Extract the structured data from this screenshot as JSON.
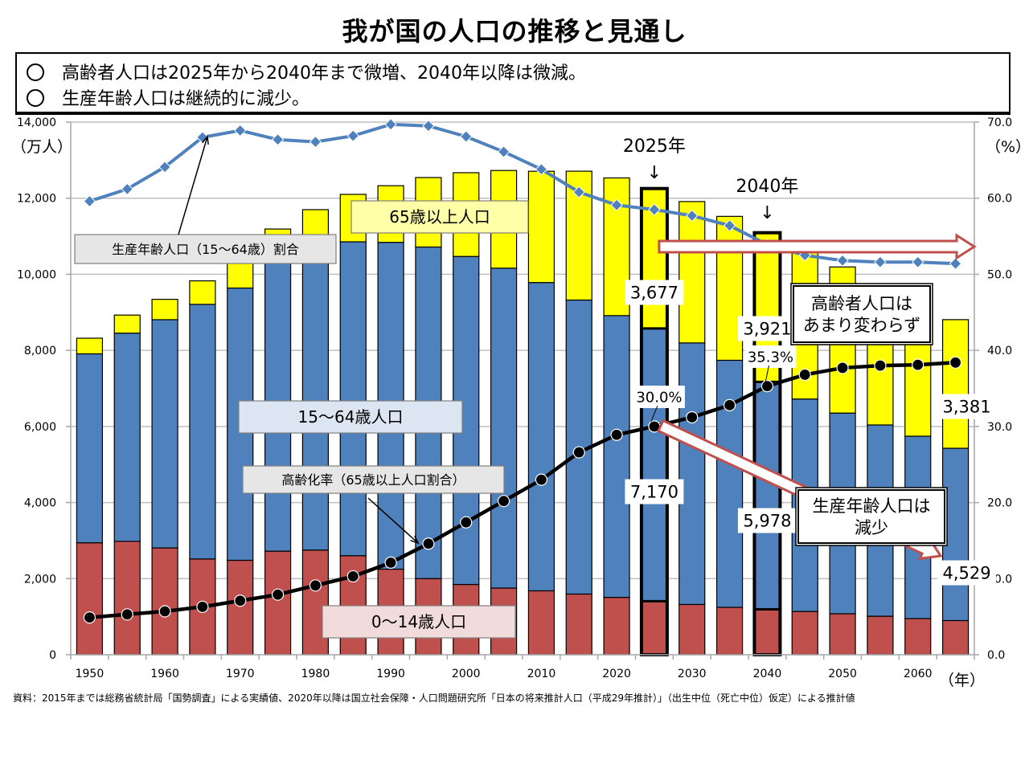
{
  "page": {
    "title": "我が国の人口の推移と見通し",
    "summary": [
      "高齢者人口は2025年から2040年まで微増、2040年以降は微減。",
      "生産年齢人口は継続的に減少。"
    ],
    "source": "資料：2015年までは総務省統計局「国勢調査」による実績値、2020年以降は国立社会保障・人口問題研究所「日本の将来推計人口（平成29年推計）」（出生中位（死亡中位）仮定）による推計値"
  },
  "chart_data": {
    "type": "bar",
    "stacked": true,
    "title": "我が国の人口の推移と見通し",
    "xlabel": "（年）",
    "ylabel": "（万人）",
    "y2label": "（%）",
    "ylim": [
      0,
      14000
    ],
    "y2lim": [
      0,
      70
    ],
    "yticks": [
      "0",
      "2,000",
      "4,000",
      "6,000",
      "8,000",
      "10,000",
      "12,000",
      "14,000"
    ],
    "y2ticks": [
      "0.0",
      "10.0",
      "20.0",
      "30.0",
      "40.0",
      "50.0",
      "60.0",
      "70.0"
    ],
    "xtick_labels": [
      "1950",
      "1960",
      "1970",
      "1980",
      "1990",
      "2000",
      "2010",
      "2020",
      "2030",
      "2040",
      "2050",
      "2060"
    ],
    "grid": true,
    "categories": [
      1950,
      1955,
      1960,
      1965,
      1970,
      1975,
      1980,
      1985,
      1990,
      1995,
      2000,
      2005,
      2010,
      2015,
      2020,
      2025,
      2030,
      2035,
      2040,
      2045,
      2050,
      2055,
      2060,
      2065
    ],
    "highlighted_years": [
      2025,
      2040
    ],
    "series": [
      {
        "name": "0〜14歳人口",
        "kind": "bar",
        "axis": "left",
        "color": "#C0504D",
        "values": [
          2943,
          2980,
          2807,
          2517,
          2482,
          2722,
          2751,
          2603,
          2249,
          2001,
          1847,
          1752,
          1680,
          1595,
          1508,
          1407,
          1321,
          1246,
          1194,
          1138,
          1077,
          1012,
          951,
          898
        ]
      },
      {
        "name": "15〜64歳人口",
        "kind": "bar",
        "axis": "left",
        "color": "#4F81BD",
        "values": [
          4966,
          5473,
          6000,
          6693,
          7157,
          7581,
          7883,
          8251,
          8590,
          8716,
          8622,
          8409,
          8103,
          7728,
          7406,
          7170,
          6875,
          6494,
          5978,
          5584,
          5275,
          5028,
          4793,
          4529
        ]
      },
      {
        "name": "65歳以上人口",
        "kind": "bar",
        "axis": "left",
        "color": "#FFFF00",
        "values": [
          411,
          475,
          535,
          618,
          733,
          887,
          1065,
          1247,
          1489,
          1826,
          2201,
          2567,
          2925,
          3387,
          3619,
          3677,
          3716,
          3782,
          3921,
          3919,
          3841,
          3704,
          3540,
          3381
        ]
      },
      {
        "name": "生産年齢人口（15〜64歳）割合",
        "kind": "line",
        "axis": "right",
        "color": "#4F81BD",
        "marker": "diamond",
        "values": [
          59.6,
          61.2,
          64.1,
          68.0,
          68.9,
          67.7,
          67.4,
          68.2,
          69.7,
          69.5,
          68.1,
          66.1,
          63.8,
          60.8,
          59.1,
          58.5,
          57.7,
          56.4,
          53.9,
          52.5,
          51.8,
          51.6,
          51.6,
          51.4
        ]
      },
      {
        "name": "高齢化率（65歳以上人口割合）",
        "kind": "line",
        "axis": "right",
        "color": "#000000",
        "marker": "circle",
        "values": [
          4.9,
          5.3,
          5.7,
          6.3,
          7.1,
          7.9,
          9.1,
          10.3,
          12.1,
          14.6,
          17.4,
          20.2,
          23.0,
          26.6,
          28.9,
          30.0,
          31.2,
          32.8,
          35.3,
          36.8,
          37.7,
          38.0,
          38.1,
          38.4
        ]
      }
    ],
    "data_labels": [
      {
        "text": "3,677",
        "year": 2025,
        "series": "65歳以上人口"
      },
      {
        "text": "7,170",
        "year": 2025,
        "series": "15〜64歳人口"
      },
      {
        "text": "30.0%",
        "year": 2025,
        "series": "高齢化率（65歳以上人口割合）"
      },
      {
        "text": "3,921",
        "year": 2040,
        "series": "65歳以上人口"
      },
      {
        "text": "5,978",
        "year": 2040,
        "series": "15〜64歳人口"
      },
      {
        "text": "35.3%",
        "year": 2040,
        "series": "高齢化率（65歳以上人口割合）"
      },
      {
        "text": "3,381",
        "year": 2065,
        "series": "65歳以上人口"
      },
      {
        "text": "4,529",
        "year": 2065,
        "series": "15〜64歳人口"
      }
    ],
    "annotations": {
      "year_markers": [
        "2025年",
        "2040年"
      ],
      "arrow_glyph": "↓",
      "series_labels": {
        "elderly": "65歳以上人口",
        "working": "15〜64歳人口",
        "children": "0〜14歳人口",
        "working_ratio": "生産年齢人口（15〜64歳）割合",
        "aging_rate": "高齢化率（65歳以上人口割合）"
      },
      "callout_elderly": [
        "高齢者人口は",
        "あまり変わらず"
      ],
      "callout_working": [
        "生産年齢人口は",
        "減少"
      ]
    }
  }
}
